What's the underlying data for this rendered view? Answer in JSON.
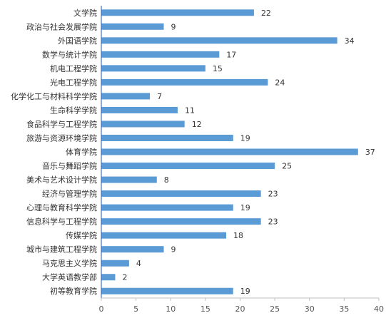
{
  "chart_data": {
    "type": "bar",
    "orientation": "horizontal",
    "categories": [
      "文学院",
      "政治与社会发展学院",
      "外国语学院",
      "数学与统计学院",
      "机电工程学院",
      "光电工程学院",
      "化学化工与材料科学学院",
      "生命科学学院",
      "食品科学与工程学院",
      "旅游与资源环境学院",
      "体育学院",
      "音乐与舞蹈学院",
      "美术与艺术设计学院",
      "经济与管理学院",
      "心理与教育科学学院",
      "信息科学与工程学院",
      "传媒学院",
      "城市与建筑工程学院",
      "马克思主义学院",
      "大学英语教学部",
      "初等教育学院"
    ],
    "values": [
      22,
      9,
      34,
      17,
      15,
      24,
      7,
      11,
      12,
      19,
      37,
      25,
      8,
      23,
      19,
      23,
      18,
      9,
      4,
      2,
      19
    ],
    "xlim": [
      0,
      40
    ],
    "xticks": [
      0,
      5,
      10,
      15,
      20,
      25,
      30,
      35,
      40
    ],
    "grid": false,
    "data_labels": true,
    "bar_color": "#5b9bd5",
    "axis_color": "#4472c4",
    "title": "",
    "xlabel": "",
    "ylabel": ""
  }
}
